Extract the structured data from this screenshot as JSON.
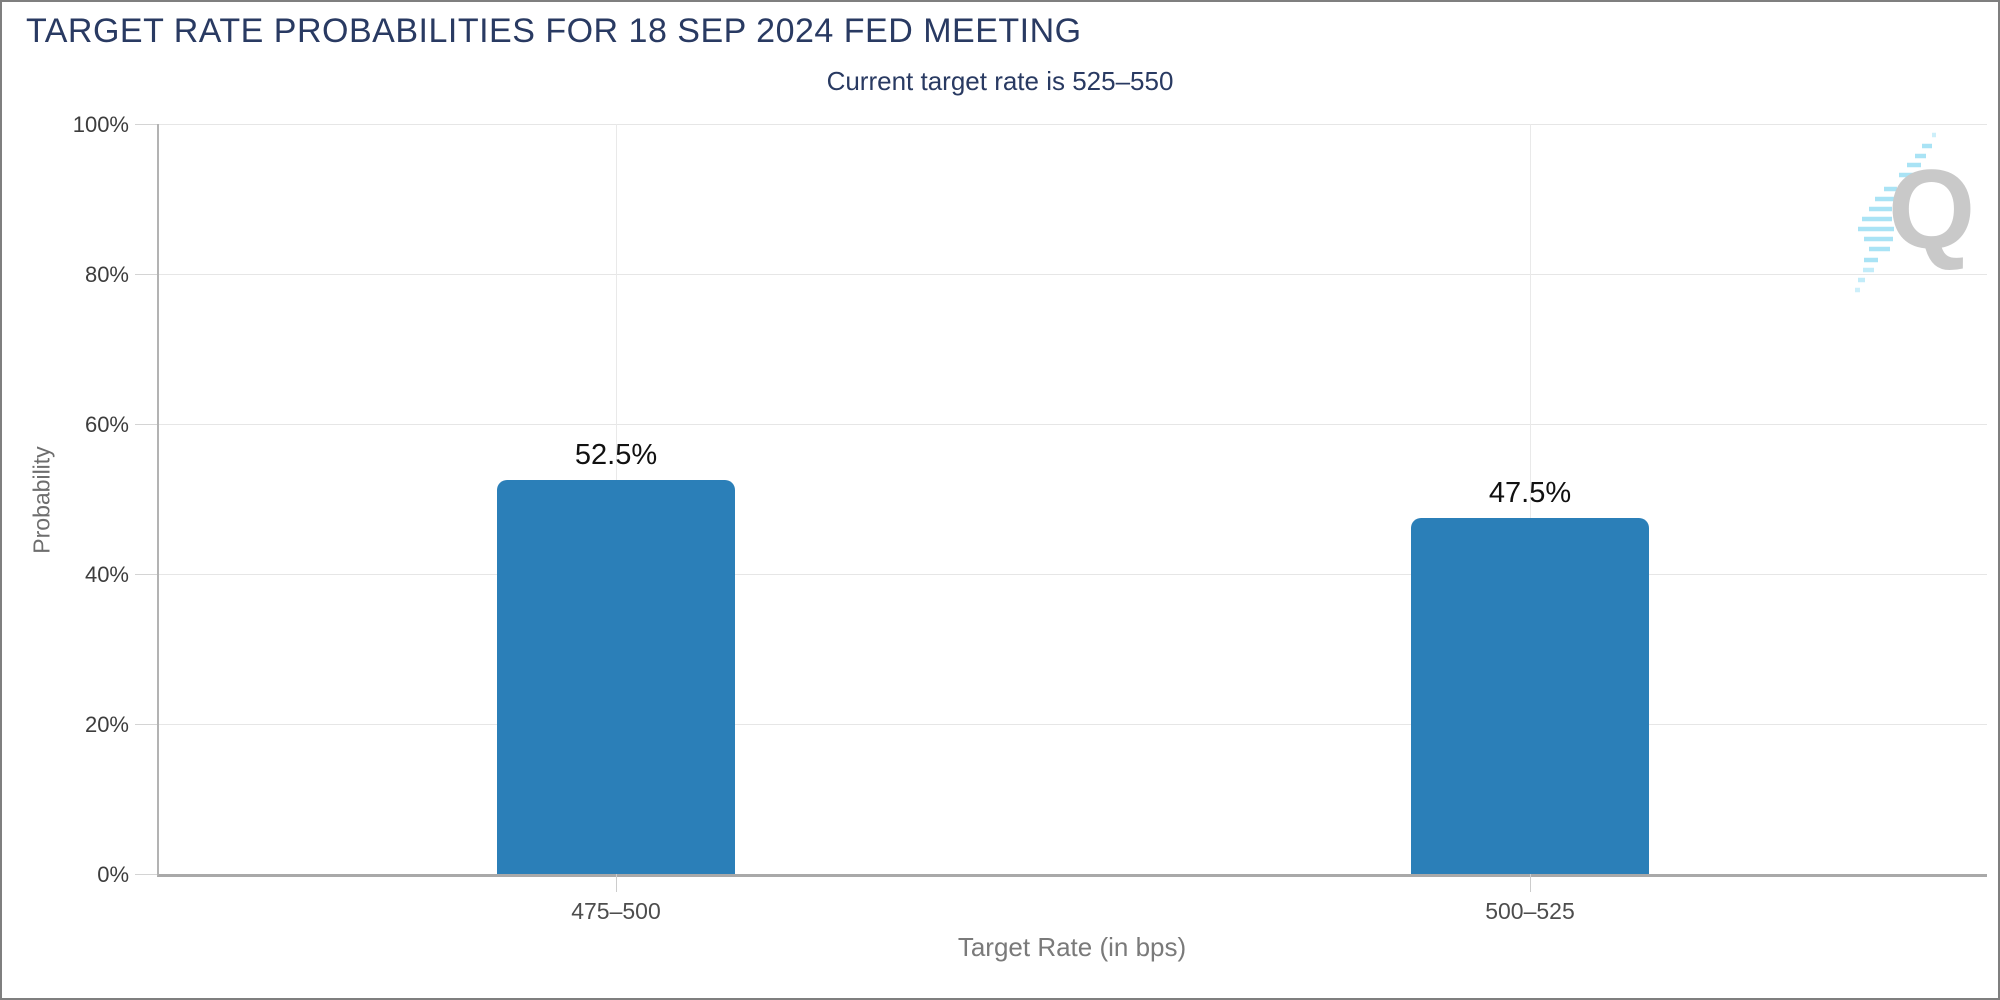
{
  "chart_data": {
    "type": "bar",
    "title": "TARGET RATE PROBABILITIES FOR 18 SEP 2024 FED MEETING",
    "subtitle": "Current target rate is 525–550",
    "categories": [
      "475–500",
      "500–525"
    ],
    "values": [
      52.5,
      47.5
    ],
    "value_labels": [
      "52.5%",
      "47.5%"
    ],
    "xlabel": "Target Rate (in bps)",
    "ylabel": "Probability",
    "ylim": [
      0,
      100
    ],
    "ytick_labels": [
      "100%",
      "80%",
      "60%",
      "40%",
      "20%",
      "0%"
    ],
    "grid": true,
    "legend": "none",
    "bar_color": "#2b7fb8",
    "title_color": "#293a62"
  },
  "logo": {
    "letter": "Q"
  }
}
